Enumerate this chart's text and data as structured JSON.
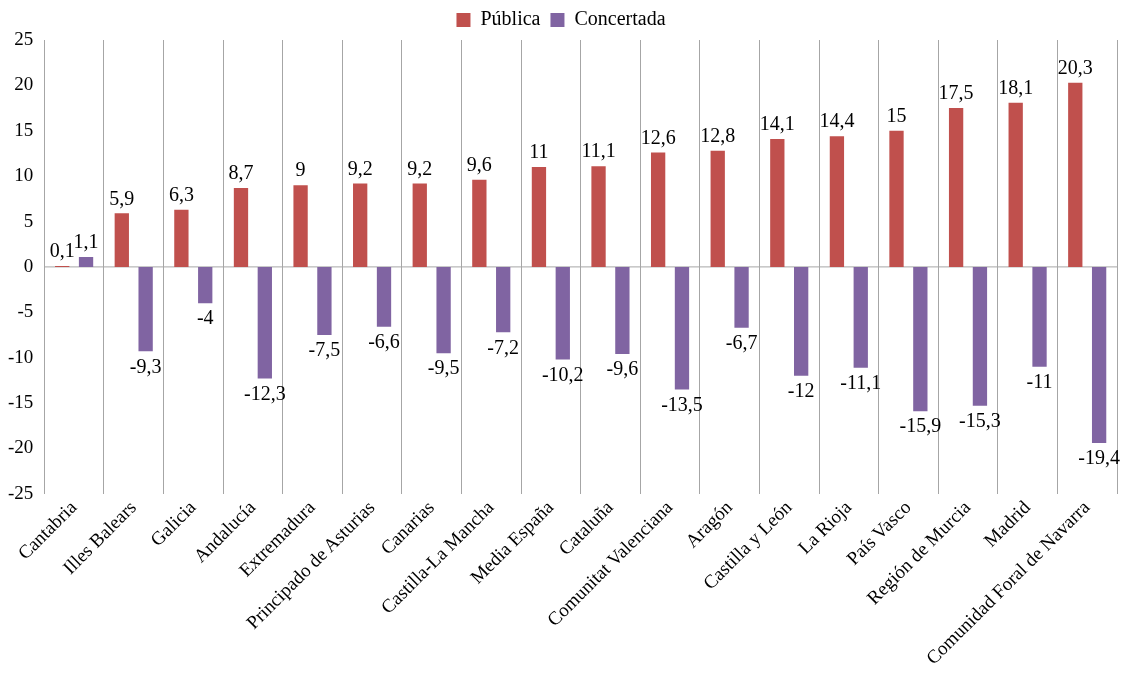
{
  "chart_data": {
    "type": "bar",
    "categories": [
      "Cantabria",
      "Illes Balears",
      "Galicia",
      "Andalucía",
      "Extremadura",
      "Principado de Asturias",
      "Canarias",
      "Castilla-La Mancha",
      "Media España",
      "Cataluña",
      "Comunitat Valenciana",
      "Aragón",
      "Castilla y León",
      "La Rioja",
      "País Vasco",
      "Región de Murcia",
      "Madrid",
      "Comunidad Foral de Navarra"
    ],
    "series": [
      {
        "name": "Pública",
        "color": "#c0504d",
        "values": [
          0.1,
          5.9,
          6.3,
          8.7,
          9,
          9.2,
          9.2,
          9.6,
          11,
          11.1,
          12.6,
          12.8,
          14.1,
          14.4,
          15,
          17.5,
          18.1,
          20.3
        ],
        "value_labels": [
          "0,1",
          "5,9",
          "6,3",
          "8,7",
          "9",
          "9,2",
          "9,2",
          "9,6",
          "11",
          "11,1",
          "12,6",
          "12,8",
          "14,1",
          "14,4",
          "15",
          "17,5",
          "18,1",
          "20,3"
        ]
      },
      {
        "name": "Concertada",
        "color": "#8064a2",
        "values": [
          1.1,
          -9.3,
          -4,
          -12.3,
          -7.5,
          -6.6,
          -9.5,
          -7.2,
          -10.2,
          -9.6,
          -13.5,
          -6.7,
          -12,
          -11.1,
          -15.9,
          -15.3,
          -11,
          -19.4
        ],
        "value_labels": [
          "1,1",
          "-9,3",
          "-4",
          "-12,3",
          "-7,5",
          "-6,6",
          "-9,5",
          "-7,2",
          "-10,2",
          "-9,6",
          "-13,5",
          "-6,7",
          "-12",
          "-11,1",
          "-15,9",
          "-15,3",
          "-11",
          "-19,4"
        ]
      }
    ],
    "ylim": [
      -25,
      25
    ],
    "yticks": [
      -25,
      -20,
      -15,
      -10,
      -5,
      0,
      5,
      10,
      15,
      20,
      25
    ],
    "grid": "x",
    "legend": "top",
    "ref_lines": [
      {
        "axis": "y",
        "value": 0,
        "color": "#a6a6a6"
      }
    ]
  }
}
